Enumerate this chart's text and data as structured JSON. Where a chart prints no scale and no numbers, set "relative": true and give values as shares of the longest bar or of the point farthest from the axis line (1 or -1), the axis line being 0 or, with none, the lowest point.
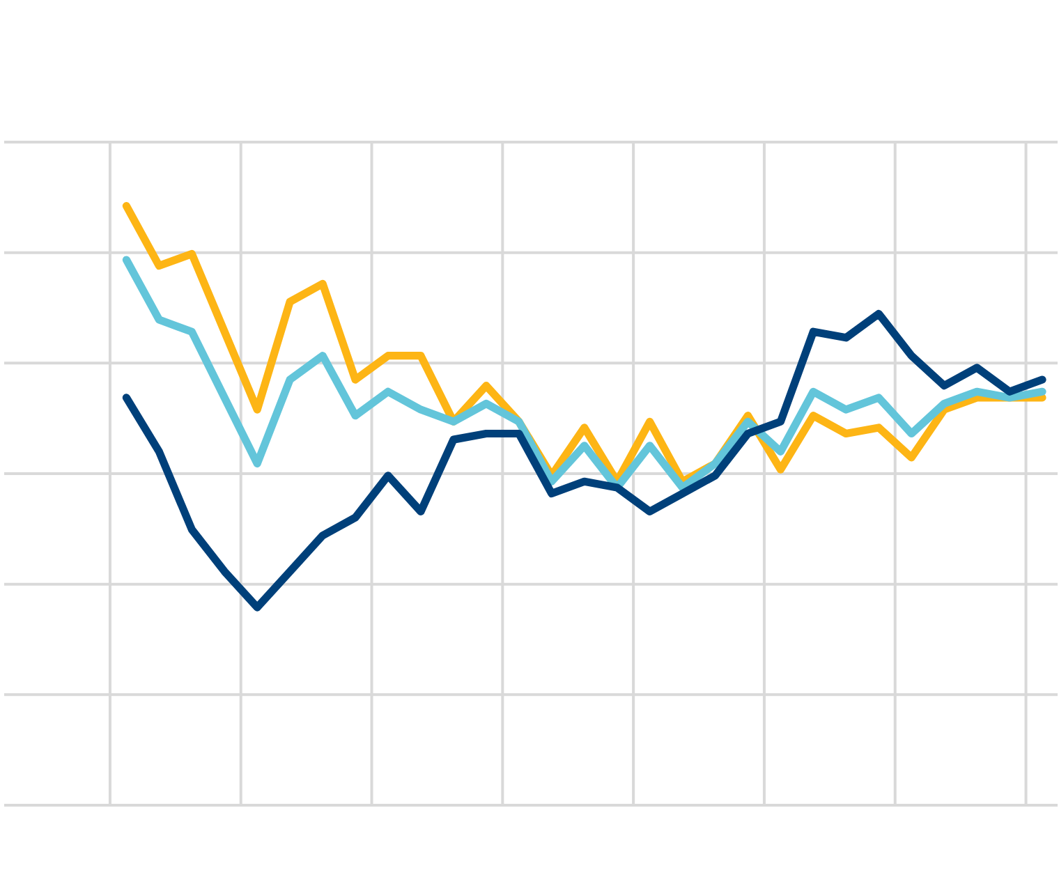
{
  "chart_data": {
    "type": "line",
    "relative": true,
    "grid": true,
    "marker": "none",
    "line_style": "solid",
    "categories": [
      null,
      null,
      null,
      null,
      null,
      null,
      null,
      null,
      null,
      null,
      null,
      null,
      null,
      null,
      null,
      null,
      null,
      null,
      null,
      null,
      null,
      null,
      null,
      null,
      null,
      null,
      null,
      null,
      null
    ],
    "series": [
      {
        "color": "#fdb515",
        "values": [
          1,
          0.9,
          0.92,
          0.79,
          0.66,
          0.84,
          0.87,
          0.71,
          0.75,
          0.75,
          0.64,
          0.7,
          0.64,
          0.55,
          0.63,
          0.54,
          0.64,
          0.54,
          0.57,
          0.65,
          0.56,
          0.65,
          0.62,
          0.63,
          0.58,
          0.66,
          0.68,
          0.68,
          0.68
        ]
      },
      {
        "color": "#63c5da",
        "values": [
          0.91,
          0.81,
          0.79,
          0.68,
          0.57,
          0.71,
          0.75,
          0.65,
          0.69,
          0.66,
          0.64,
          0.67,
          0.64,
          0.54,
          0.6,
          0.53,
          0.6,
          0.53,
          0.57,
          0.64,
          0.59,
          0.69,
          0.66,
          0.68,
          0.62,
          0.67,
          0.69,
          0.68,
          0.69
        ]
      },
      {
        "color": "#00407a",
        "values": [
          0.68,
          0.59,
          0.46,
          0.39,
          0.33,
          0.39,
          0.45,
          0.48,
          0.55,
          0.49,
          0.61,
          0.62,
          0.62,
          0.52,
          0.54,
          0.53,
          0.49,
          0.52,
          0.55,
          0.62,
          0.64,
          0.79,
          0.78,
          0.82,
          0.75,
          0.7,
          0.73,
          0.69,
          0.71
        ]
      }
    ]
  }
}
